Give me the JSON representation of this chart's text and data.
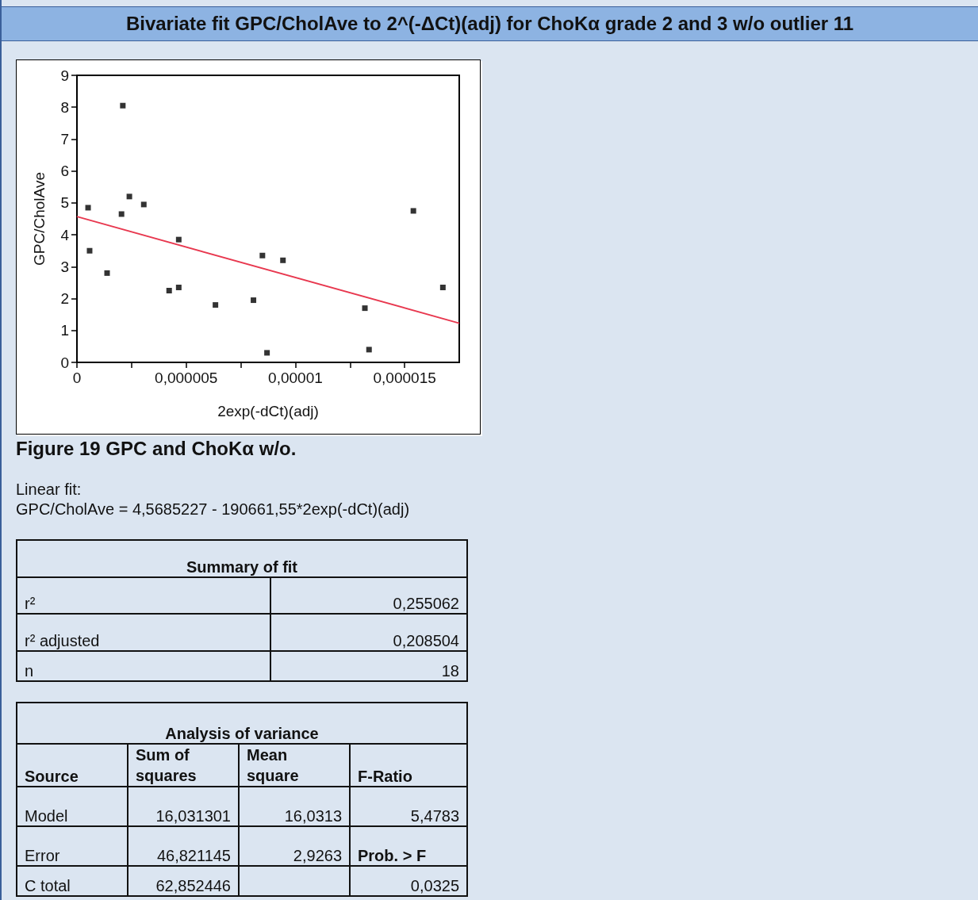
{
  "chart_data": {
    "type": "scatter",
    "title": "Bivariate fit GPC/CholAve to 2^(-ΔCt)(adj) for ChoKα grade 2 and 3 w/o outlier 11",
    "xlabel": "2exp(-dCt)(adj)",
    "ylabel": "GPC/CholAve",
    "xlim": [
      0,
      1.75e-05
    ],
    "xticks": [
      0,
      {
        "value": 2.5e-06,
        "label": null
      },
      {
        "value": 5e-06,
        "label": "0,000005"
      },
      {
        "value": 7.5e-06,
        "label": null
      },
      {
        "value": 1e-05,
        "label": "0,00001"
      },
      {
        "value": 1.25e-05,
        "label": null
      },
      {
        "value": 1.5e-05,
        "label": "0,000015"
      }
    ],
    "ylim": [
      0,
      9
    ],
    "yticks": [
      0,
      1,
      2,
      3,
      4,
      5,
      6,
      7,
      8,
      9
    ],
    "grid": false,
    "marker": "square",
    "series": [
      {
        "color": "#000000",
        "x": [
          5.1e-07,
          5.8e-07,
          1.38e-06,
          2.04e-06,
          2.1e-06,
          2.4e-06,
          3.06e-06,
          4.22e-06,
          4.66e-06,
          4.66e-06,
          6.34e-06,
          8.08e-06,
          8.49e-06,
          8.7e-06,
          9.43e-06,
          1.318e-05,
          1.337e-05,
          1.54e-05,
          1.675e-05
        ],
        "values": [
          4.85,
          3.5,
          2.8,
          4.65,
          8.05,
          5.2,
          4.95,
          2.25,
          3.85,
          2.35,
          1.8,
          1.95,
          3.35,
          0.3,
          3.2,
          1.7,
          0.4,
          4.75,
          2.35
        ]
      },
      {
        "type": "line",
        "color": "#e8384f",
        "marker": "none",
        "line_style": "solid",
        "x": [
          0,
          1.75e-05
        ],
        "values": [
          4.57,
          1.23
        ]
      }
    ],
    "annotations": [
      "Figure 19 GPC and ChoKα w/o.",
      "Linear fit:",
      "GPC/CholAve = 4,5685227 - 190661,55*2exp(-dCt)(adj)",
      "Summary of fit",
      "r²",
      "0,255062",
      "r² adjusted",
      "0,208504",
      "n",
      "18",
      "Analysis of variance",
      "Source",
      "Sum of squares",
      "Mean square",
      "F-Ratio",
      "Model",
      "16,031301",
      "16,0313",
      "5,4783",
      "Error",
      "46,821145",
      "2,9263",
      "Prob. > F",
      "C total",
      "62,852446",
      "0,0325"
    ]
  }
}
